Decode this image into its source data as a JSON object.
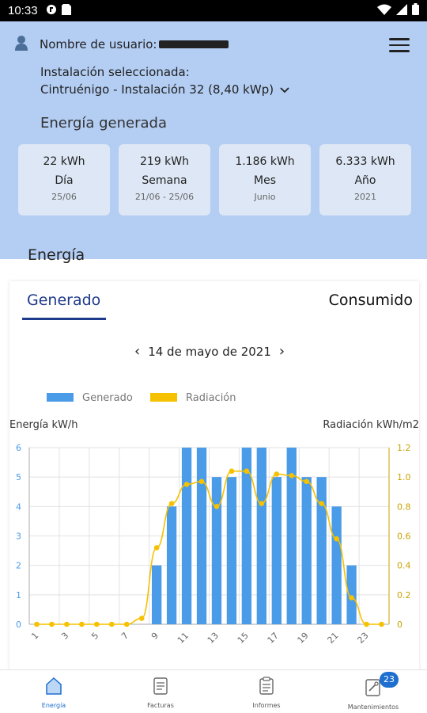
{
  "status_bar": {
    "time": "10:33"
  },
  "header": {
    "user_label": "Nombre de usuario:",
    "installation_label": "Instalación seleccionada:",
    "installation_value": "Cintruénigo - Instalación 32 (8,40 kWp)",
    "energy_title": "Energía generada",
    "cards": [
      {
        "value": "22 kWh",
        "period": "Día",
        "date": "25/06"
      },
      {
        "value": "219 kWh",
        "period": "Semana",
        "date": "21/06 - 25/06"
      },
      {
        "value": "1.186 kWh",
        "period": "Mes",
        "date": "Junio"
      },
      {
        "value": "6.333 kWh",
        "period": "Año",
        "date": "2021"
      }
    ]
  },
  "section_title": "Energía",
  "tabs": {
    "generated": "Generado",
    "consumed": "Consumido"
  },
  "date_nav": {
    "date": "14 de mayo de 2021",
    "prev": "‹",
    "next": "›"
  },
  "chart_data": {
    "type": "bar",
    "legend": [
      "Generado",
      "Radiación"
    ],
    "ylabel_left": "Energía kW/h",
    "ylabel_right": "Radiación kWh/m2",
    "x": [
      1,
      2,
      3,
      4,
      5,
      6,
      7,
      8,
      9,
      10,
      11,
      12,
      13,
      14,
      15,
      16,
      17,
      18,
      19,
      20,
      21,
      22,
      23,
      24
    ],
    "x_tick_labels": [
      "1",
      "3",
      "5",
      "7",
      "9",
      "11",
      "13",
      "15",
      "17",
      "19",
      "21",
      "23"
    ],
    "y_left_ticks": [
      "0",
      "1",
      "2",
      "3",
      "4",
      "5",
      "6"
    ],
    "y_right_ticks": [
      "0",
      "0.2",
      "0.4",
      "0.6",
      "0.8",
      "1.0",
      "1.2"
    ],
    "ylim_left": [
      0,
      6
    ],
    "ylim_right": [
      0,
      1.2
    ],
    "series": [
      {
        "name": "Generado",
        "type": "bar",
        "color": "#4a9be8",
        "values": [
          0,
          0,
          0,
          0,
          0,
          0,
          0,
          0,
          2,
          4,
          6,
          6,
          5,
          5,
          6,
          6,
          5,
          6,
          5,
          5,
          4,
          2,
          0,
          0
        ]
      },
      {
        "name": "Radiación",
        "type": "line",
        "color": "#f6c100",
        "values": [
          0,
          0,
          0,
          0,
          0,
          0,
          0,
          0.04,
          0.52,
          0.82,
          0.95,
          0.97,
          0.8,
          1.04,
          1.04,
          0.82,
          1.02,
          1.01,
          0.97,
          0.82,
          0.58,
          0.18,
          0,
          0
        ]
      }
    ]
  },
  "bottom_nav": [
    {
      "label": "Energía",
      "active": true
    },
    {
      "label": "Facturas",
      "active": false
    },
    {
      "label": "Informes",
      "active": false
    },
    {
      "label": "Mantenimientos",
      "active": false,
      "badge": "23"
    }
  ]
}
